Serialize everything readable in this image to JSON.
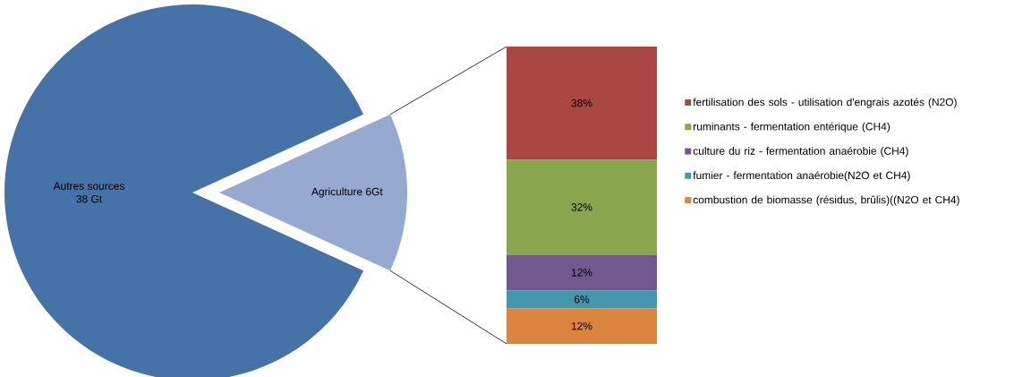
{
  "chart_data": [
    {
      "type": "pie",
      "categories": [
        "Autres sources",
        "Agriculture"
      ],
      "values": [
        38,
        6
      ],
      "value_labels": [
        "38 Gt",
        "6Gt"
      ],
      "colors": [
        "#4572a7",
        "#95a9d1"
      ]
    },
    {
      "type": "bar",
      "stacked": true,
      "categories": [
        null
      ],
      "legend": "right",
      "series": [
        {
          "name": "combustion de biomasse (résidus, brûlis)((N2O et CH4)",
          "color": "#db843d",
          "values": [
            12
          ],
          "value_labels": [
            "12%"
          ]
        },
        {
          "name": "fumier - fermentation anaérobie(N2O et CH4)",
          "color": "#4198af",
          "values": [
            6
          ],
          "value_labels": [
            "6%"
          ]
        },
        {
          "name": "culture du riz - fermentation anaérobie  (CH4)",
          "color": "#71588f",
          "values": [
            12
          ],
          "value_labels": [
            "12%"
          ]
        },
        {
          "name": "ruminants - fermentation entérique (CH4)",
          "color": "#89a54e",
          "values": [
            32
          ],
          "value_labels": [
            "32%"
          ]
        },
        {
          "name": "fertilisation des sols - utilisation d'engrais azotés (N2O)",
          "color": "#aa4643",
          "values": [
            38
          ],
          "value_labels": [
            "38%"
          ]
        }
      ]
    }
  ]
}
